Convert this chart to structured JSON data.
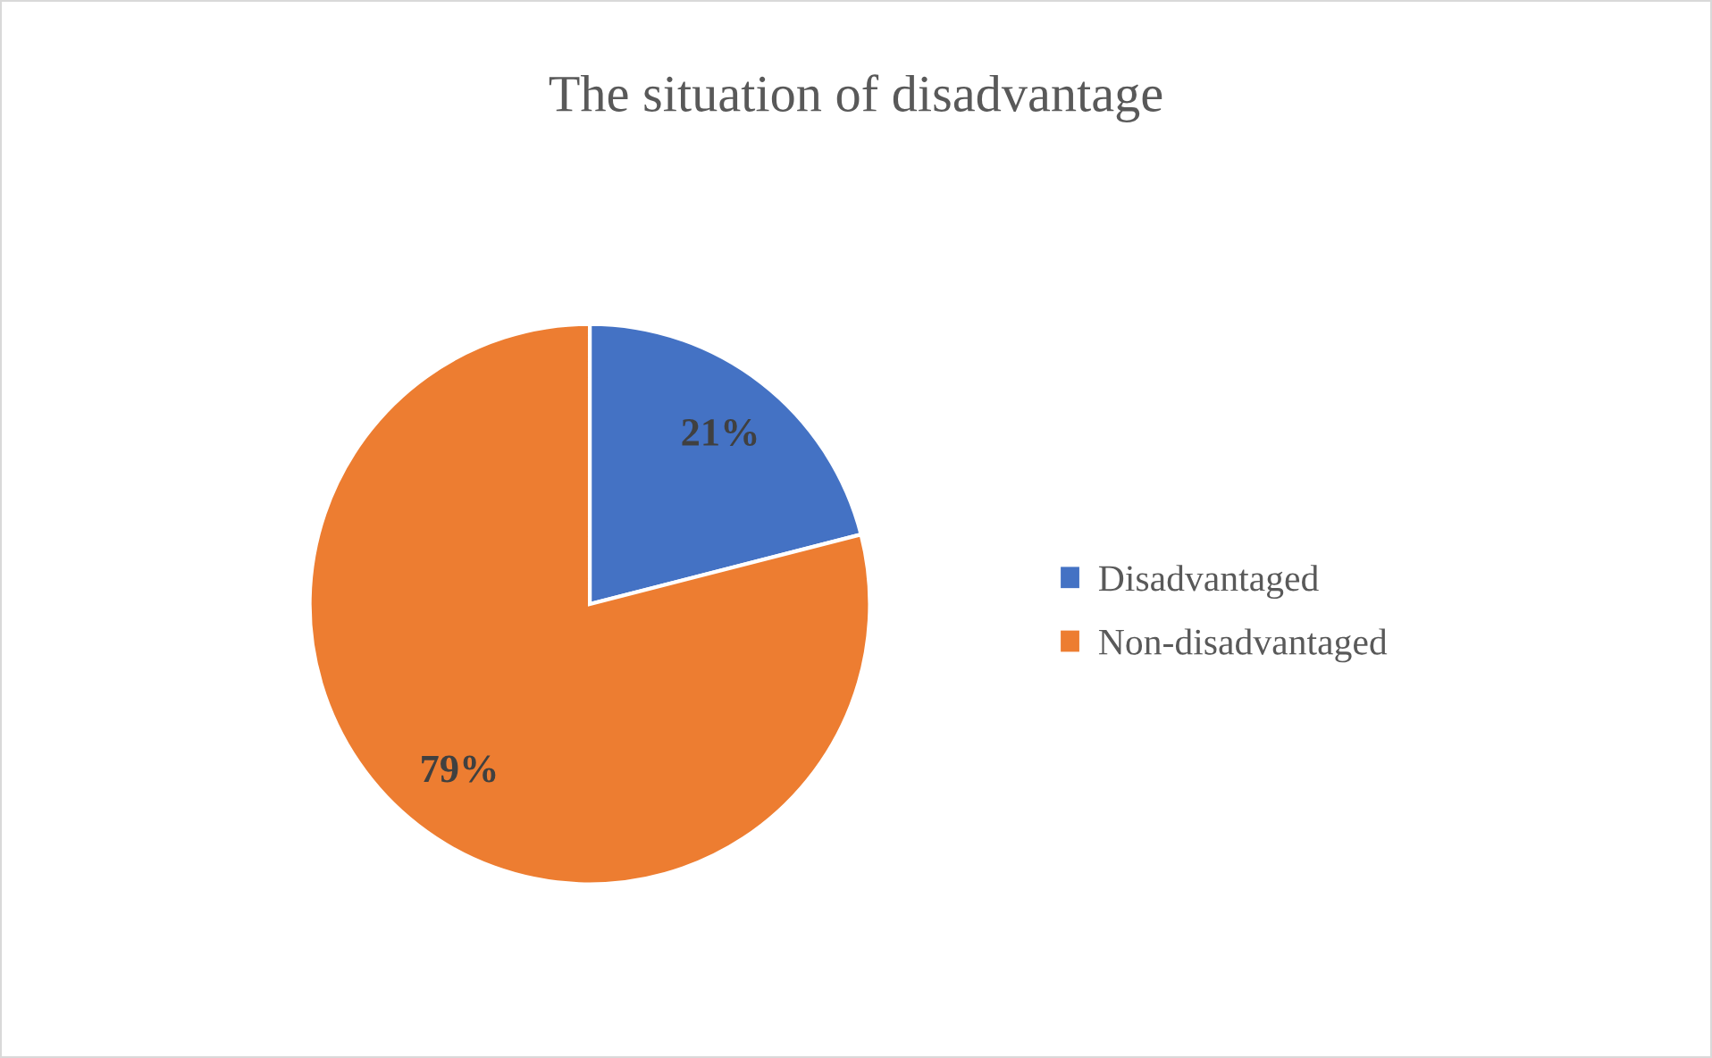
{
  "chart_data": {
    "type": "pie",
    "title": "The situation of disadvantage",
    "categories": [
      "Disadvantaged",
      "Non-disadvantaged"
    ],
    "values": [
      21,
      79
    ],
    "colors": [
      "#4472c4",
      "#ed7d31"
    ],
    "value_labels": [
      "21%",
      "79%"
    ],
    "legend": "right"
  }
}
